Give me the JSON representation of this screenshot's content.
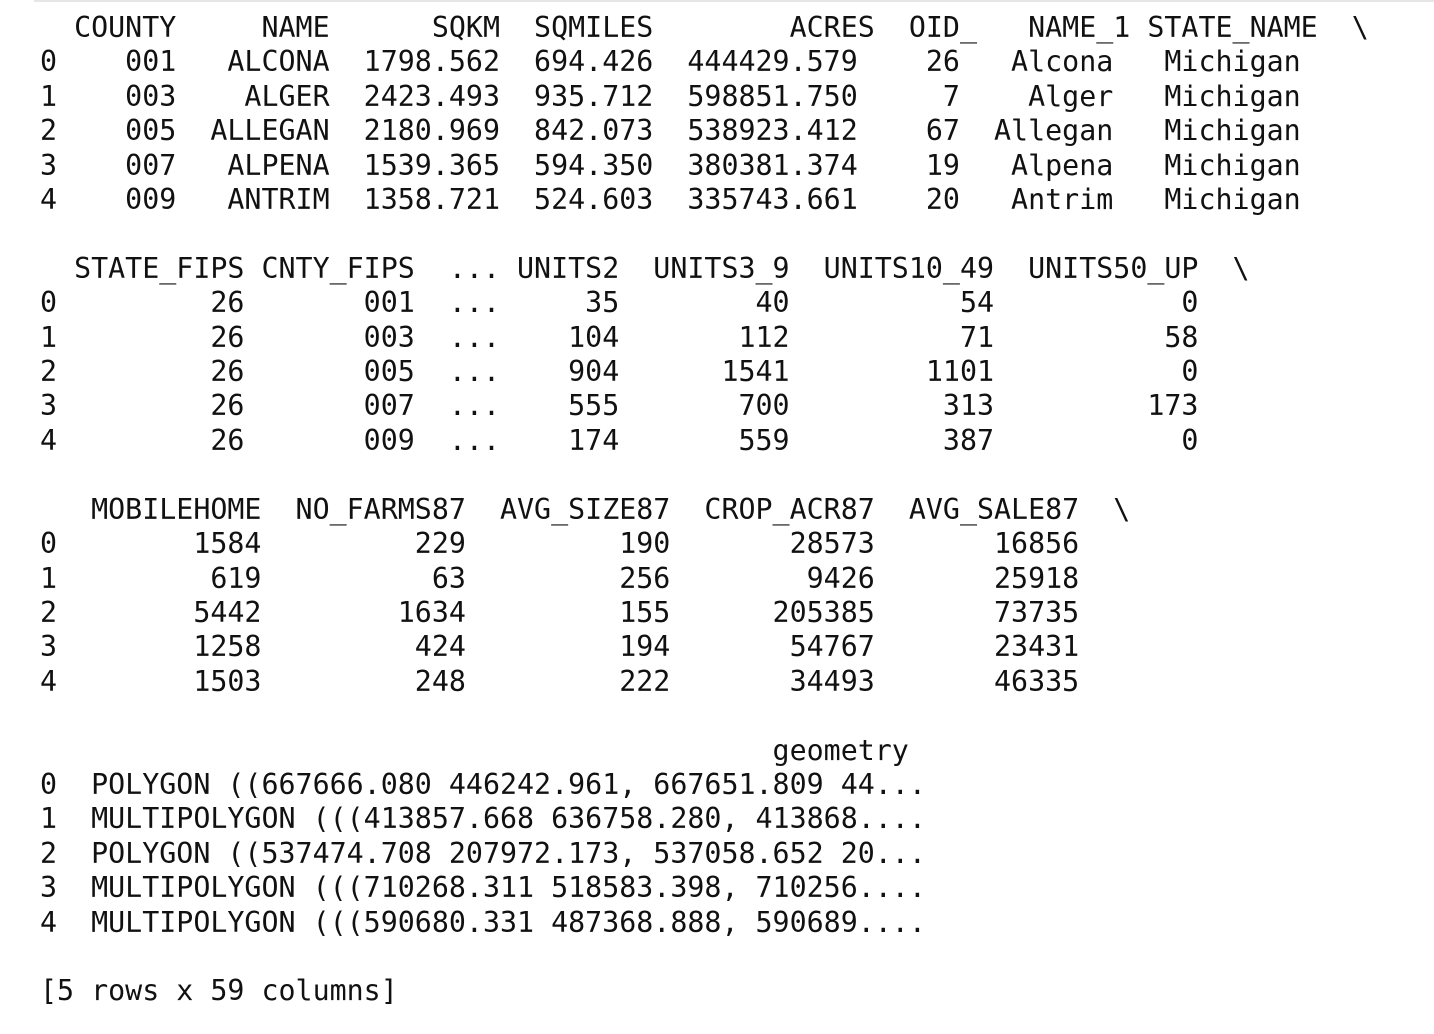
{
  "output": {
    "lines": [
      "  COUNTY     NAME      SQKM  SQMILES        ACRES  OID_   NAME_1 STATE_NAME  \\",
      "0    001   ALCONA  1798.562  694.426  444429.579    26   Alcona   Michigan   ",
      "1    003    ALGER  2423.493  935.712  598851.750     7    Alger   Michigan   ",
      "2    005  ALLEGAN  2180.969  842.073  538923.412    67  Allegan   Michigan   ",
      "3    007   ALPENA  1539.365  594.350  380381.374    19   Alpena   Michigan   ",
      "4    009   ANTRIM  1358.721  524.603  335743.661    20   Antrim   Michigan   ",
      "",
      "  STATE_FIPS CNTY_FIPS  ... UNITS2  UNITS3_9  UNITS10_49  UNITS50_UP  \\",
      "0         26       001  ...     35        40          54           0   ",
      "1         26       003  ...    104       112          71          58   ",
      "2         26       005  ...    904      1541        1101           0   ",
      "3         26       007  ...    555       700         313         173   ",
      "4         26       009  ...    174       559         387           0   ",
      "",
      "   MOBILEHOME  NO_FARMS87  AVG_SIZE87  CROP_ACR87  AVG_SALE87  \\",
      "0        1584         229         190       28573       16856   ",
      "1         619          63         256        9426       25918   ",
      "2        5442        1634         155      205385       73735   ",
      "3        1258         424         194       54767       23431   ",
      "4        1503         248         222       34493       46335   ",
      "",
      "                                           geometry  ",
      "0  POLYGON ((667666.080 446242.961, 667651.809 44...  ",
      "1  MULTIPOLYGON (((413857.668 636758.280, 413868....  ",
      "2  POLYGON ((537474.708 207972.173, 537058.652 20...  ",
      "3  MULTIPOLYGON (((710268.311 518583.398, 710256....  ",
      "4  MULTIPOLYGON (((590680.331 487368.888, 590689....  ",
      "",
      "[5 rows x 59 columns]"
    ]
  }
}
